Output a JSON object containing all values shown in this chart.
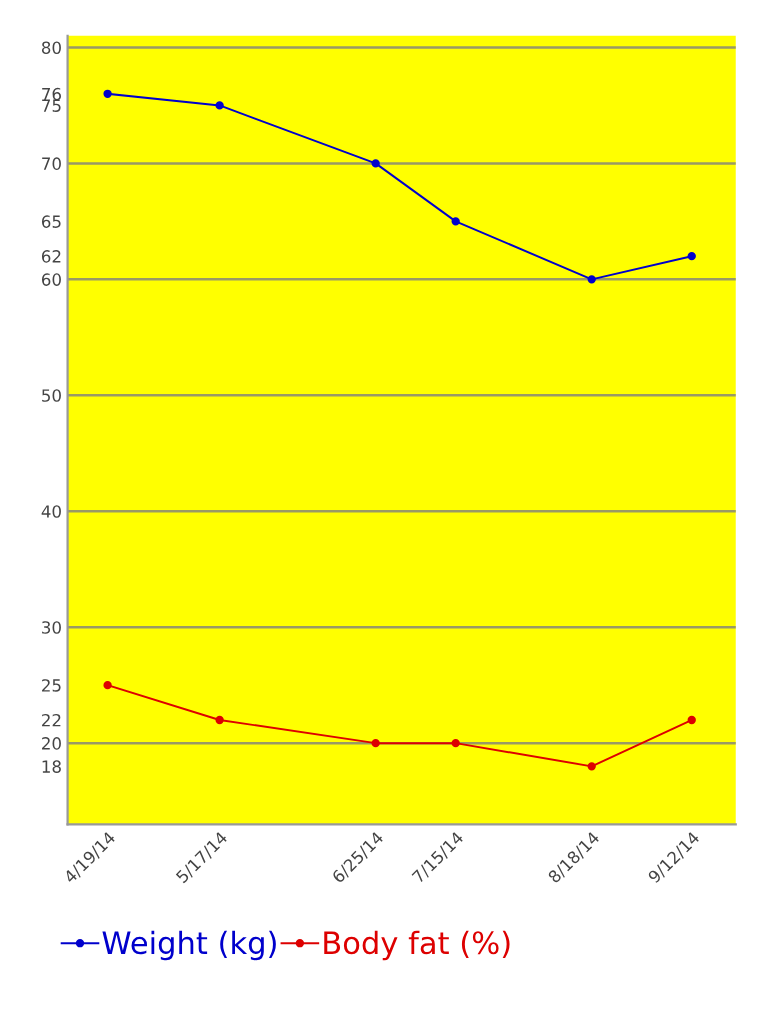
{
  "chart_data": {
    "type": "line",
    "x": [
      "2014-04-19",
      "2014-05-17",
      "2014-06-25",
      "2014-07-15",
      "2014-08-18",
      "2014-09-12"
    ],
    "series": [
      {
        "name": "Weight (kg)",
        "color": "#0000cc",
        "values": [
          76,
          75,
          70,
          65,
          60,
          62
        ]
      },
      {
        "name": "Body fat (%)",
        "color": "#dd0000",
        "values": [
          25,
          22,
          20,
          20,
          18,
          22
        ]
      }
    ],
    "xlim": [
      "2014-04-09",
      "2014-09-23"
    ],
    "xticks": [
      {
        "value": "2014-04-19",
        "label": "4/19/14"
      },
      {
        "value": "2014-05-17",
        "label": "5/17/14"
      },
      {
        "value": "2014-06-25",
        "label": "6/25/14"
      },
      {
        "value": "2014-07-15",
        "label": "7/15/14"
      },
      {
        "value": "2014-08-18",
        "label": "8/18/14"
      },
      {
        "value": "2014-09-12",
        "label": "9/12/14"
      }
    ],
    "ylim": [
      13,
      81
    ],
    "yticks": [
      18,
      20,
      22,
      25,
      30,
      40,
      50,
      60,
      62,
      65,
      70,
      75,
      76,
      80
    ],
    "ref_lines": [
      {
        "axis": "y",
        "value": 20,
        "color": "#999966"
      },
      {
        "axis": "y",
        "value": 30,
        "color": "#999966"
      },
      {
        "axis": "y",
        "value": 40,
        "color": "#999966"
      },
      {
        "axis": "y",
        "value": 50,
        "color": "#999966"
      },
      {
        "axis": "y",
        "value": 60,
        "color": "#999966"
      },
      {
        "axis": "y",
        "value": 70,
        "color": "#999966"
      },
      {
        "axis": "y",
        "value": 80,
        "color": "#999966"
      }
    ],
    "grid": false,
    "legend": "bottom",
    "marker": "circle",
    "line_style": "solid"
  }
}
